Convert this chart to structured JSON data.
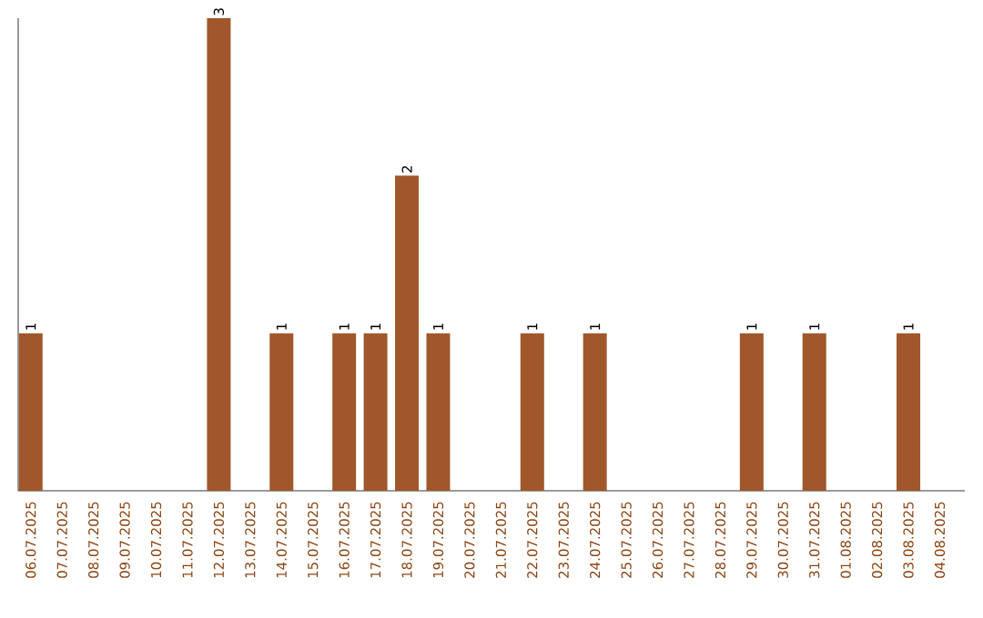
{
  "chart_data": {
    "type": "bar",
    "categories": [
      "06.07.2025",
      "07.07.2025",
      "08.07.2025",
      "09.07.2025",
      "10.07.2025",
      "11.07.2025",
      "12.07.2025",
      "13.07.2025",
      "14.07.2025",
      "15.07.2025",
      "16.07.2025",
      "17.07.2025",
      "18.07.2025",
      "19.07.2025",
      "20.07.2025",
      "21.07.2025",
      "22.07.2025",
      "23.07.2025",
      "24.07.2025",
      "25.07.2025",
      "26.07.2025",
      "27.07.2025",
      "28.07.2025",
      "29.07.2025",
      "30.07.2025",
      "31.07.2025",
      "01.08.2025",
      "02.08.2025",
      "03.08.2025",
      "04.08.2025"
    ],
    "values": [
      1,
      0,
      0,
      0,
      0,
      0,
      3,
      0,
      1,
      0,
      1,
      1,
      2,
      1,
      0,
      0,
      1,
      0,
      1,
      0,
      0,
      0,
      0,
      1,
      0,
      1,
      0,
      0,
      1,
      0
    ],
    "value_labels": [
      "1",
      null,
      null,
      null,
      null,
      null,
      "3",
      null,
      "1",
      null,
      "1",
      "1",
      "2",
      "1",
      null,
      null,
      "1",
      null,
      "1",
      null,
      null,
      null,
      null,
      "1",
      null,
      "1",
      null,
      null,
      "1",
      null
    ],
    "color": "#a0572b",
    "tick_labels": "x"
  }
}
